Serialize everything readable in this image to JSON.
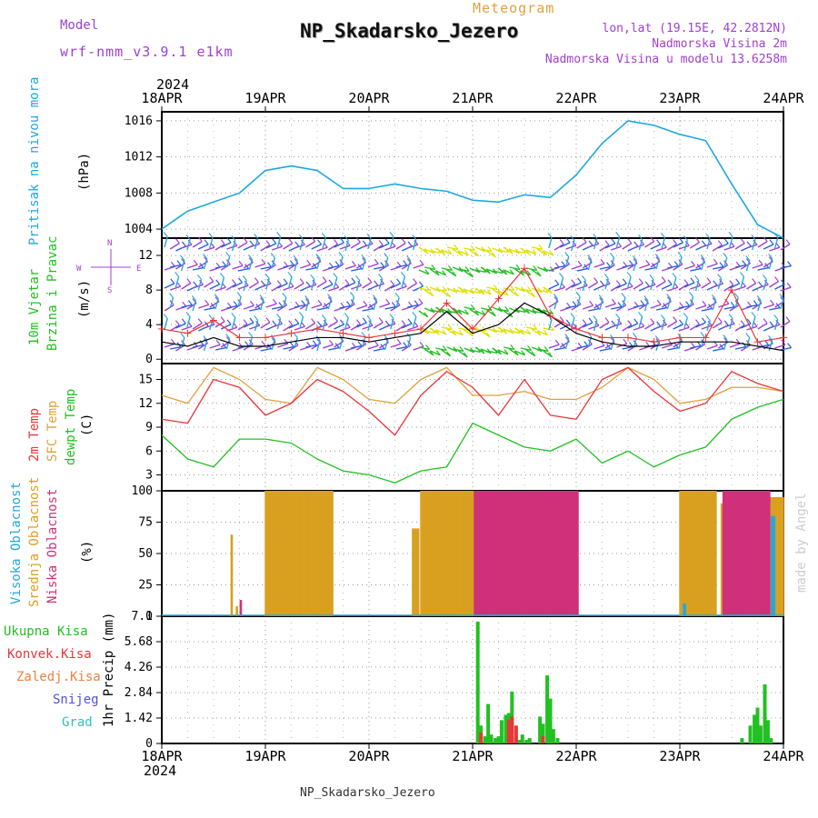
{
  "header": {
    "model_label": "Model",
    "model_name": "wrf-nmm_v3.9.1 e1km",
    "meteogram": "Meteogram",
    "station": "NP_Skadarsko_Jezero",
    "lonlat": "lon,lat (19.15E, 42.2812N)",
    "height": "Nadmorska Visina 2m",
    "model_height": "Nadmorska Visina u modelu 13.6258m",
    "year": "2024",
    "footer_station": "NP_Skadarsko_Jezero",
    "credit": "made by Angel"
  },
  "colors": {
    "pressure": "#1ea8e0",
    "temp2m": "#e8363a",
    "sfc": "#e0a040",
    "dewpt": "#22c022",
    "high": "#25a8d8",
    "mid": "#d9a020",
    "low": "#d0307a",
    "total": "#22c022",
    "conv": "#e8363a",
    "grid_snow": "#7070e0",
    "hail": "#30c0c0",
    "wind_speed": "#000000",
    "gust": "#e8363a",
    "purple": "#a040d0"
  },
  "time_axis": {
    "dates": [
      "18APR",
      "19APR",
      "20APR",
      "21APR",
      "22APR",
      "23APR",
      "24APR"
    ]
  },
  "panels": {
    "pressure": {
      "label1": "Pritisak na nivou mora",
      "unit": "(hPa)"
    },
    "wind": {
      "label1": "10m Vjetar",
      "label2": "Brzina i Pravac",
      "unit": "(m/s)",
      "compass_n": "N",
      "compass_s": "S",
      "compass_e": "E",
      "compass_w": "W"
    },
    "temp": {
      "label1": "2m Temp",
      "label2": "SFC Temp",
      "label3": "dewpt Temp",
      "unit": "(C)"
    },
    "cloud": {
      "label1": "Visoka Oblacnost",
      "label2": "Srednja Oblacnost",
      "label3": "Niska Oblacnost",
      "unit": "(%)"
    },
    "precip": {
      "label1": "Ukupna Kisa",
      "label2": "Konvek.Kisa",
      "label3": "Zaledj.Kisa",
      "label4": "Snijeg",
      "label5": "Grad",
      "unit": "1hr Precip (mm)"
    }
  },
  "chart_data": [
    {
      "type": "line",
      "ylabel": "(hPa)",
      "x_unit": "days since 18APR 00UTC",
      "ylim": [
        1003,
        1017
      ],
      "yticks": [
        1004,
        1008,
        1012,
        1016
      ],
      "series": [
        {
          "name": "Pritisak na nivou mora",
          "x": [
            0,
            0.25,
            0.5,
            0.75,
            1,
            1.25,
            1.5,
            1.75,
            2,
            2.25,
            2.5,
            2.75,
            3,
            3.25,
            3.5,
            3.75,
            4,
            4.25,
            4.5,
            4.75,
            5,
            5.25,
            5.5,
            5.75,
            6
          ],
          "y": [
            1004,
            1006,
            1007,
            1008,
            1010.5,
            1011,
            1010.5,
            1008.5,
            1008.5,
            1009,
            1008.5,
            1008.2,
            1007.2,
            1007,
            1007.8,
            1007.5,
            1010,
            1013.5,
            1016,
            1015.5,
            1014.5,
            1013.8,
            1009,
            1004.5,
            1003
          ]
        }
      ]
    },
    {
      "type": "line",
      "ylabel": "(m/s)",
      "ylim": [
        -0.5,
        14
      ],
      "yticks": [
        0,
        4,
        8,
        12
      ],
      "series": [
        {
          "name": "wind speed",
          "x": [
            0,
            0.25,
            0.5,
            0.75,
            1,
            1.25,
            1.5,
            1.75,
            2,
            2.25,
            2.5,
            2.75,
            3,
            3.25,
            3.5,
            3.75,
            4,
            4.25,
            4.5,
            4.75,
            5,
            5.25,
            5.5,
            5.75,
            6
          ],
          "y": [
            2,
            1.5,
            2.5,
            1.5,
            1.5,
            2,
            2.5,
            2.5,
            2,
            2.5,
            3,
            5.5,
            3,
            4,
            6.5,
            5,
            3,
            2,
            1.5,
            1.5,
            2,
            2,
            2,
            1.5,
            1
          ]
        },
        {
          "name": "gust",
          "x": [
            0,
            0.25,
            0.5,
            0.75,
            1,
            1.25,
            1.5,
            1.75,
            2,
            2.25,
            2.5,
            2.75,
            3,
            3.25,
            3.5,
            3.75,
            4,
            4.25,
            4.5,
            4.75,
            5,
            5.25,
            5.5,
            5.75,
            6
          ],
          "y": [
            3.5,
            3,
            4.5,
            2.5,
            2.5,
            3,
            3.5,
            3,
            2.5,
            3,
            3.5,
            6.5,
            3.5,
            7,
            10.5,
            5,
            3.5,
            2.5,
            2.5,
            2,
            2.5,
            2.5,
            8,
            2,
            2.5
          ]
        }
      ]
    },
    {
      "type": "line",
      "ylabel": "(C)",
      "ylim": [
        1,
        17
      ],
      "yticks": [
        3,
        6,
        9,
        12,
        15
      ],
      "series": [
        {
          "name": "2m Temp",
          "x": [
            0,
            0.25,
            0.5,
            0.75,
            1,
            1.25,
            1.5,
            1.75,
            2,
            2.25,
            2.5,
            2.75,
            3,
            3.25,
            3.5,
            3.75,
            4,
            4.25,
            4.5,
            4.75,
            5,
            5.25,
            5.5,
            5.75,
            6
          ],
          "y": [
            10,
            9.5,
            15,
            14,
            10.5,
            12,
            15,
            13.5,
            11,
            8,
            13,
            16,
            14,
            10.5,
            15,
            10.5,
            10,
            15,
            16.5,
            13.5,
            11,
            12,
            16,
            14.5,
            13.5
          ]
        },
        {
          "name": "SFC Temp",
          "x": [
            0,
            0.25,
            0.5,
            0.75,
            1,
            1.25,
            1.5,
            1.75,
            2,
            2.25,
            2.5,
            2.75,
            3,
            3.25,
            3.5,
            3.75,
            4,
            4.25,
            4.5,
            4.75,
            5,
            5.25,
            5.5,
            5.75,
            6
          ],
          "y": [
            13,
            12,
            16.5,
            15,
            12.5,
            12,
            16.5,
            15,
            12.5,
            12,
            15,
            16.5,
            13,
            13,
            13.5,
            12.5,
            12.5,
            14,
            16.5,
            15,
            12,
            12.5,
            14,
            14,
            13.5
          ]
        },
        {
          "name": "dewpt Temp",
          "x": [
            0,
            0.25,
            0.5,
            0.75,
            1,
            1.25,
            1.5,
            1.75,
            2,
            2.25,
            2.5,
            2.75,
            3,
            3.25,
            3.5,
            3.75,
            4,
            4.25,
            4.5,
            4.75,
            5,
            5.25,
            5.5,
            5.75,
            6
          ],
          "y": [
            8,
            5,
            4,
            7.5,
            7.5,
            7,
            5,
            3.5,
            3,
            2,
            3.5,
            4,
            9.5,
            8,
            6.5,
            6,
            7.5,
            4.5,
            6,
            4,
            5.5,
            6.5,
            10,
            11.5,
            12.5
          ]
        }
      ]
    },
    {
      "type": "bar",
      "ylabel": "(%)",
      "ylim": [
        0,
        100
      ],
      "yticks": [
        0,
        25,
        50,
        75,
        100
      ],
      "series": [
        {
          "name": "Srednja Oblacnost",
          "spans": [
            [
              0.67,
              0.68,
              65
            ],
            [
              0.72,
              0.73,
              8
            ],
            [
              1.0,
              1.65,
              100
            ],
            [
              2.42,
              2.48,
              70
            ],
            [
              2.5,
              3.55,
              100
            ],
            [
              3.55,
              4.0,
              100
            ],
            [
              5.0,
              5.35,
              100
            ],
            [
              5.4,
              5.7,
              90
            ],
            [
              5.75,
              6.0,
              95
            ]
          ]
        },
        {
          "name": "Niska Oblacnost",
          "spans": [
            [
              0.74,
              0.75,
              13
            ],
            [
              3.0,
              4.0,
              100
            ],
            [
              5.4,
              5.85,
              100
            ]
          ]
        },
        {
          "name": "Visoka Oblacnost",
          "spans": [
            [
              5.0,
              5.02,
              10
            ],
            [
              5.85,
              5.88,
              80
            ]
          ]
        }
      ]
    },
    {
      "type": "bar",
      "ylabel": "1hr Precip (mm)",
      "ylim": [
        0,
        7.1
      ],
      "yticks": [
        0,
        1.42,
        2.84,
        4.26,
        5.68,
        7.1
      ],
      "series": [
        {
          "name": "Ukupna Kisa",
          "x": [
            3.05,
            3.08,
            3.12,
            3.15,
            3.18,
            3.22,
            3.25,
            3.28,
            3.32,
            3.35,
            3.38,
            3.42,
            3.45,
            3.48,
            3.52,
            3.55,
            3.65,
            3.68,
            3.72,
            3.75,
            3.78,
            3.82,
            5.6,
            5.68,
            5.72,
            5.75,
            5.78,
            5.82,
            5.85,
            5.88
          ],
          "y": [
            6.8,
            1.0,
            0.4,
            2.2,
            0.5,
            0.3,
            0.4,
            1.3,
            1.6,
            1.7,
            2.9,
            0.4,
            0.2,
            0.5,
            0.2,
            0.3,
            1.5,
            1.1,
            3.8,
            2.5,
            0.8,
            0.3,
            0.3,
            1.0,
            1.6,
            2.0,
            1.0,
            3.3,
            1.3,
            0.3
          ]
        },
        {
          "name": "Konvek.Kisa",
          "x": [
            3.08,
            3.35,
            3.38,
            3.42,
            3.68
          ],
          "y": [
            0.6,
            1.3,
            1.5,
            1.0,
            0.4
          ]
        }
      ]
    }
  ]
}
